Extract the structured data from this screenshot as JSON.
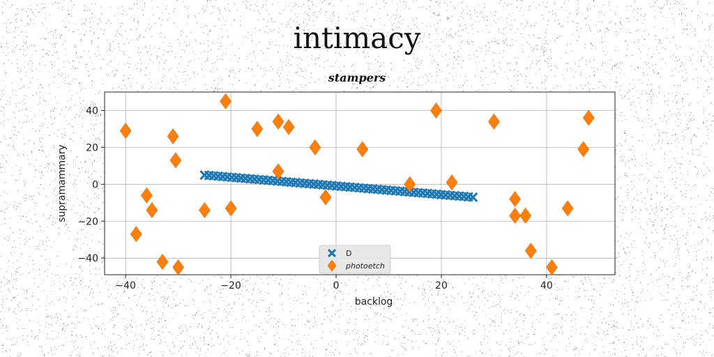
{
  "chart_data": {
    "type": "scatter",
    "title": "intimacy",
    "subtitle": "stampers",
    "xlabel": "backlog",
    "ylabel": "supramammary",
    "xlim": [
      -44,
      53
    ],
    "ylim": [
      -49,
      50
    ],
    "xticks": [
      -40,
      -20,
      0,
      20,
      40
    ],
    "yticks": [
      -40,
      -20,
      0,
      20,
      40
    ],
    "grid": true,
    "legend": "bottom-center",
    "series": [
      {
        "name": "D",
        "marker": "x",
        "color": "#1f77b4",
        "line": {
          "x_start": -25,
          "x_end": 26,
          "y_start": 5,
          "y_end": -7,
          "count": 60
        }
      },
      {
        "name": "photoetch",
        "marker": "diamond",
        "color": "#ff7f0e",
        "points": [
          {
            "x": -40,
            "y": 29
          },
          {
            "x": -38,
            "y": -27
          },
          {
            "x": -36,
            "y": -6
          },
          {
            "x": -35,
            "y": -14
          },
          {
            "x": -33,
            "y": -42
          },
          {
            "x": -31,
            "y": 26
          },
          {
            "x": -30.5,
            "y": 13
          },
          {
            "x": -30,
            "y": -45
          },
          {
            "x": -25,
            "y": -14
          },
          {
            "x": -21,
            "y": 45
          },
          {
            "x": -20,
            "y": -13
          },
          {
            "x": -15,
            "y": 30
          },
          {
            "x": -11,
            "y": 34
          },
          {
            "x": -11,
            "y": 7
          },
          {
            "x": -9,
            "y": 31
          },
          {
            "x": -4,
            "y": 20
          },
          {
            "x": -2,
            "y": -7
          },
          {
            "x": 5,
            "y": 19
          },
          {
            "x": 14,
            "y": 0
          },
          {
            "x": 19,
            "y": 40
          },
          {
            "x": 22,
            "y": 1
          },
          {
            "x": 30,
            "y": 34
          },
          {
            "x": 34,
            "y": -8
          },
          {
            "x": 34,
            "y": -17
          },
          {
            "x": 36,
            "y": -17
          },
          {
            "x": 37,
            "y": -36
          },
          {
            "x": 41,
            "y": -45
          },
          {
            "x": 44,
            "y": -13
          },
          {
            "x": 47,
            "y": 19
          },
          {
            "x": 48,
            "y": 36
          }
        ]
      }
    ]
  }
}
